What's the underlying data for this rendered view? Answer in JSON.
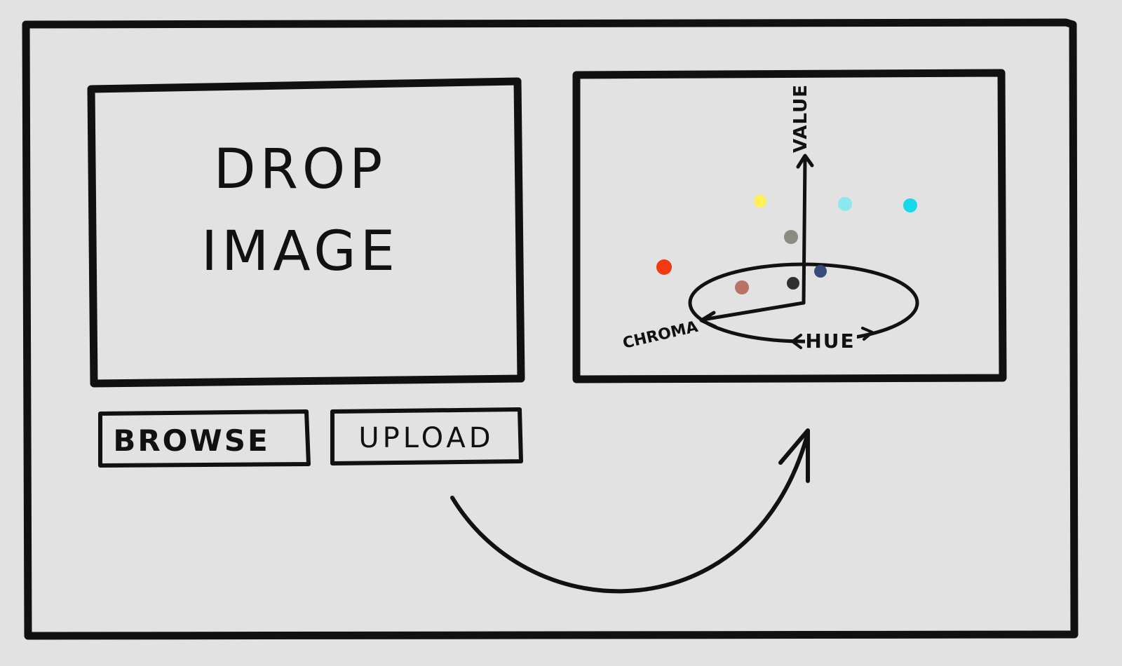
{
  "background_color": "#e2e2e2",
  "ink_color": "#111111",
  "drop_zone": {
    "line1": "DROP",
    "line2": "IMAGE"
  },
  "buttons": {
    "browse_label": "BROWSE",
    "upload_label": "UPLOAD"
  },
  "color_plot": {
    "axis_value_label": "VALUE",
    "axis_chroma_label": "CHROMA",
    "axis_hue_label": "HUE",
    "color_dots": [
      {
        "name": "yellow-dot",
        "color": "#fff05a"
      },
      {
        "name": "light-cyan-dot",
        "color": "#8ae8ee"
      },
      {
        "name": "cyan-dot",
        "color": "#18d8ec"
      },
      {
        "name": "gray-green-dot",
        "color": "#8a8c80"
      },
      {
        "name": "red-dot",
        "color": "#f23a12"
      },
      {
        "name": "navy-dot",
        "color": "#3a4a7a"
      },
      {
        "name": "rose-brown-dot",
        "color": "#b87268"
      },
      {
        "name": "dark-dot",
        "color": "#303030"
      }
    ]
  },
  "flow_arrow": "upload-to-plot-arrow"
}
